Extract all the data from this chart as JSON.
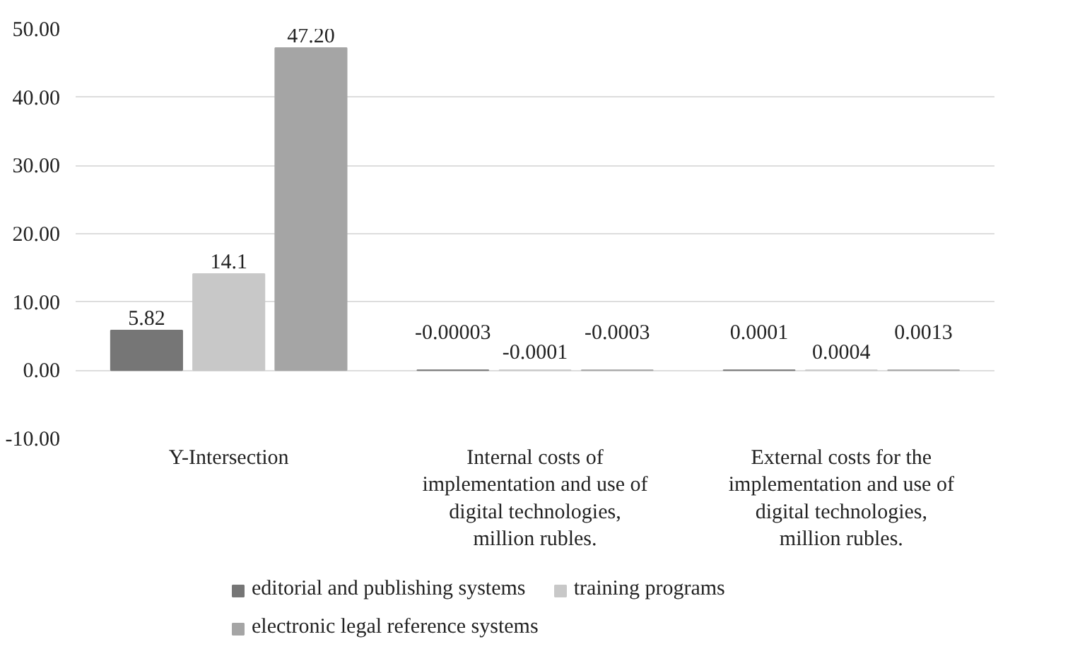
{
  "chart_data": {
    "type": "bar",
    "categories": [
      "Y-Intersection",
      "Internal costs of implementation and use of digital technologies, million rubles.",
      "External costs for the implementation and use of digital technologies, million rubles."
    ],
    "series": [
      {
        "name": "editorial and publishing systems",
        "color": "#767676",
        "values": [
          5.82,
          -3e-05,
          0.0001
        ]
      },
      {
        "name": "training programs",
        "color": "#c8c8c8",
        "values": [
          14.1,
          -0.0001,
          0.0004
        ]
      },
      {
        "name": "electronic legal reference systems",
        "color": "#a5a5a5",
        "values": [
          47.2,
          -0.0003,
          0.0013
        ]
      }
    ],
    "value_labels": [
      [
        "5.82",
        "-0.00003",
        "0.0001"
      ],
      [
        "14.1",
        "-0.0001",
        "0.0004"
      ],
      [
        "47.20",
        "-0.0003",
        "0.0013"
      ]
    ],
    "ylim": [
      -10,
      50
    ],
    "yticks": [
      {
        "value": -10,
        "label": "-10.00"
      },
      {
        "value": 0,
        "label": "0.00"
      },
      {
        "value": 10,
        "label": "10.00"
      },
      {
        "value": 20,
        "label": "20.00"
      },
      {
        "value": 30,
        "label": "30.00"
      },
      {
        "value": 40,
        "label": "40.00"
      },
      {
        "value": 50,
        "label": "50.00"
      }
    ],
    "grid": "y",
    "legend": "bottom"
  }
}
